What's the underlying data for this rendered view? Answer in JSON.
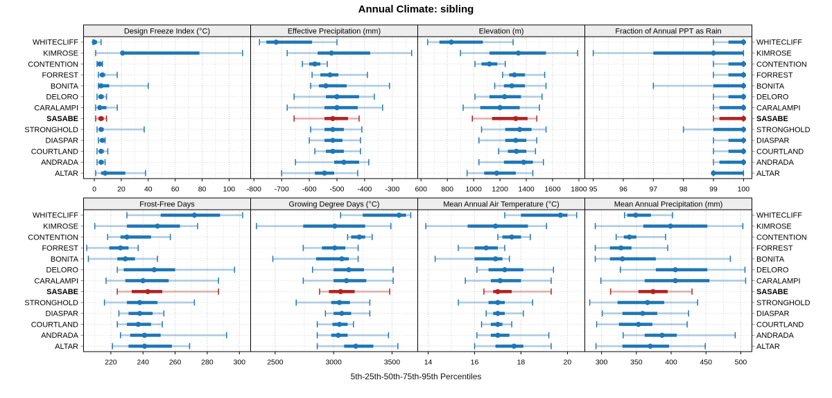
{
  "title": "Annual Climate: sibling",
  "caption": "5th-25th-50th-75th-95th Percentiles",
  "percentile_labels": [
    "5th",
    "25th",
    "50th",
    "75th",
    "95th"
  ],
  "stations": [
    "WHITECLIFF",
    "KIMROSE",
    "CONTENTION",
    "FORREST",
    "BONITA",
    "DELORO",
    "CARALAMPI",
    "SASABE",
    "STRONGHOLD",
    "DIASPAR",
    "COURTLAND",
    "ANDRADA",
    "ALTAR"
  ],
  "highlighted_station": "SASABE",
  "colors": {
    "series": "#1f77b4",
    "series_band": "rgba(31,119,180,0.33)",
    "highlight": "#b22222",
    "highlight_band": "rgba(178,34,34,0.33)",
    "strip_bg": "#ededed",
    "panel_border": "#000000",
    "grid_major": "#c4c4c4",
    "grid_minor": "#dcdcdc",
    "row_guide": "#d8d8d8",
    "text": "#000000"
  },
  "chart_data": {
    "type": "trellis-dotplot",
    "note": "Each row: [p5, p25, p50, p75, p95] per station, station order matches stations[]",
    "panels": [
      {
        "title": "Design Freeze Index (°C)",
        "grid_row": 0,
        "domain": [
          -8,
          116
        ],
        "ticks": [
          0,
          20,
          40,
          60,
          80,
          100
        ],
        "minor_step": 10,
        "series": [
          [
            -1,
            0,
            0,
            2,
            5
          ],
          [
            1,
            20,
            21,
            78,
            110
          ],
          [
            2,
            3,
            4,
            5,
            6
          ],
          [
            3,
            4,
            6,
            8,
            17
          ],
          [
            3,
            4,
            5,
            11,
            40
          ],
          [
            2,
            3,
            5,
            7,
            9
          ],
          [
            1,
            3,
            4,
            9,
            17
          ],
          [
            1,
            3,
            5,
            7,
            9
          ],
          [
            2,
            4,
            5,
            7,
            37
          ],
          [
            3,
            4,
            6,
            7,
            8
          ],
          [
            2,
            4,
            5,
            7,
            10
          ],
          [
            2,
            4,
            5,
            7,
            8
          ],
          [
            1,
            5,
            8,
            23,
            38
          ]
        ]
      },
      {
        "title": "Effective Precipitation (mm)",
        "grid_row": 0,
        "domain": [
          -812,
          -208
        ],
        "ticks": [
          -800,
          -700,
          -600,
          -500,
          -400,
          -300
        ],
        "minor_step": 50,
        "series": [
          [
            -780,
            -755,
            -720,
            -590,
            -500
          ],
          [
            -680,
            -570,
            -520,
            -380,
            -230
          ],
          [
            -625,
            -600,
            -580,
            -560,
            -535
          ],
          [
            -590,
            -560,
            -525,
            -495,
            -390
          ],
          [
            -595,
            -565,
            -540,
            -465,
            -310
          ],
          [
            -655,
            -540,
            -500,
            -420,
            -365
          ],
          [
            -680,
            -545,
            -500,
            -425,
            -335
          ],
          [
            -655,
            -545,
            -515,
            -460,
            -420
          ],
          [
            -595,
            -545,
            -515,
            -475,
            -410
          ],
          [
            -600,
            -545,
            -515,
            -480,
            -415
          ],
          [
            -580,
            -540,
            -515,
            -475,
            -415
          ],
          [
            -650,
            -510,
            -475,
            -420,
            -385
          ],
          [
            -700,
            -580,
            -545,
            -510,
            -425
          ]
        ]
      },
      {
        "title": "Elevation (m)",
        "grid_row": 0,
        "domain": [
          575,
          1845
        ],
        "ticks": [
          600,
          800,
          1000,
          1200,
          1400,
          1600,
          1800
        ],
        "minor_step": 100,
        "series": [
          [
            650,
            740,
            830,
            1070,
            1300
          ],
          [
            900,
            1120,
            1340,
            1550,
            1790
          ],
          [
            1010,
            1060,
            1120,
            1180,
            1240
          ],
          [
            1220,
            1270,
            1310,
            1390,
            1540
          ],
          [
            1160,
            1230,
            1290,
            1390,
            1550
          ],
          [
            1010,
            1120,
            1235,
            1360,
            1520
          ],
          [
            920,
            1050,
            1200,
            1350,
            1500
          ],
          [
            990,
            1140,
            1320,
            1410,
            1480
          ],
          [
            1060,
            1240,
            1350,
            1440,
            1550
          ],
          [
            1040,
            1240,
            1320,
            1400,
            1480
          ],
          [
            1190,
            1260,
            1325,
            1400,
            1470
          ],
          [
            1040,
            1230,
            1380,
            1450,
            1530
          ],
          [
            950,
            1080,
            1175,
            1320,
            1450
          ]
        ]
      },
      {
        "title": "Fraction of Annual PPT as Rain",
        "grid_row": 0,
        "domain": [
          94.72,
          100.28
        ],
        "ticks": [
          95,
          96,
          97,
          98,
          99,
          100
        ],
        "minor_step": 0.5,
        "series": [
          [
            99,
            99.5,
            100,
            100,
            100
          ],
          [
            95,
            97,
            99,
            100,
            100
          ],
          [
            99,
            99.5,
            100,
            100,
            100
          ],
          [
            99,
            99.5,
            100,
            100,
            100
          ],
          [
            97,
            99,
            100,
            100,
            100
          ],
          [
            99,
            99.5,
            100,
            100,
            100
          ],
          [
            99,
            99.2,
            100,
            100,
            100
          ],
          [
            99,
            99.2,
            100,
            100,
            100
          ],
          [
            98,
            99,
            100,
            100,
            100
          ],
          [
            99,
            99.5,
            100,
            100,
            100
          ],
          [
            99,
            99.5,
            100,
            100,
            100
          ],
          [
            99,
            99.2,
            100,
            100,
            100
          ],
          [
            99,
            99,
            99,
            100,
            100
          ]
        ]
      },
      {
        "title": "Frost-Free Days",
        "grid_row": 1,
        "domain": [
          203,
          307
        ],
        "ticks": [
          220,
          240,
          260,
          280,
          300
        ],
        "minor_step": 10,
        "series": [
          [
            230,
            251,
            272,
            288,
            302
          ],
          [
            210,
            230,
            249,
            263,
            274
          ],
          [
            218,
            226,
            230,
            245,
            257
          ],
          [
            205,
            219,
            226,
            231,
            237
          ],
          [
            206,
            224,
            229,
            235,
            249
          ],
          [
            224,
            228,
            247,
            260,
            297
          ],
          [
            217,
            229,
            240,
            256,
            287
          ],
          [
            224,
            233,
            243,
            252,
            287
          ],
          [
            216,
            230,
            238,
            249,
            272
          ],
          [
            225,
            231,
            238,
            246,
            253
          ],
          [
            224,
            230,
            237,
            245,
            252
          ],
          [
            226,
            232,
            241,
            251,
            292
          ],
          [
            221,
            231,
            241,
            258,
            269
          ]
        ]
      },
      {
        "title": "Growing Degree Days (°C)",
        "grid_row": 1,
        "domain": [
          2290,
          3720
        ],
        "ticks": [
          2500,
          3000,
          3500
        ],
        "minor_step": 250,
        "series": [
          [
            3060,
            3250,
            3560,
            3620,
            3660
          ],
          [
            2340,
            2740,
            3010,
            3270,
            3490
          ],
          [
            3120,
            3150,
            3220,
            3270,
            3330
          ],
          [
            2740,
            2900,
            3010,
            3100,
            3210
          ],
          [
            2480,
            2850,
            3070,
            3130,
            3210
          ],
          [
            2820,
            3000,
            3130,
            3260,
            3510
          ],
          [
            2740,
            3000,
            3110,
            3280,
            3510
          ],
          [
            2880,
            2960,
            3060,
            3180,
            3480
          ],
          [
            2680,
            2980,
            3050,
            3140,
            3310
          ],
          [
            2930,
            3000,
            3070,
            3150,
            3310
          ],
          [
            2860,
            2990,
            3050,
            3120,
            3170
          ],
          [
            2860,
            2980,
            3040,
            3120,
            3470
          ],
          [
            2860,
            3090,
            3190,
            3340,
            3550
          ]
        ]
      },
      {
        "title": "Mean Annual Air Temperature (°C)",
        "grid_row": 1,
        "domain": [
          13.55,
          20.75
        ],
        "ticks": [
          14,
          16,
          18,
          20
        ],
        "minor_step": 1,
        "series": [
          [
            17.3,
            18.0,
            19.7,
            20.0,
            20.4
          ],
          [
            13.9,
            15.7,
            16.9,
            18.3,
            19.1
          ],
          [
            17.0,
            17.2,
            17.6,
            18.0,
            18.4
          ],
          [
            15.3,
            16.0,
            16.5,
            17.0,
            17.3
          ],
          [
            14.3,
            16.0,
            16.9,
            17.2,
            17.5
          ],
          [
            16.1,
            16.6,
            17.3,
            18.1,
            19.4
          ],
          [
            15.6,
            16.7,
            17.1,
            18.0,
            19.3
          ],
          [
            16.4,
            16.8,
            17.0,
            17.6,
            19.3
          ],
          [
            15.3,
            16.6,
            17.0,
            17.3,
            18.5
          ],
          [
            16.5,
            16.8,
            17.0,
            17.3,
            18.1
          ],
          [
            16.3,
            16.7,
            17.0,
            17.2,
            17.6
          ],
          [
            16.1,
            16.7,
            17.0,
            17.5,
            19.2
          ],
          [
            16.0,
            16.9,
            17.7,
            18.1,
            19.3
          ]
        ]
      },
      {
        "title": "Mean Annual Precipitation (mm)",
        "grid_row": 1,
        "domain": [
          276,
          516
        ],
        "ticks": [
          300,
          350,
          400,
          450,
          500
        ],
        "minor_step": 25,
        "series": [
          [
            333,
            337,
            349,
            371,
            402
          ],
          [
            291,
            360,
            399,
            452,
            503
          ],
          [
            321,
            332,
            340,
            350,
            392
          ],
          [
            291,
            312,
            328,
            343,
            395
          ],
          [
            291,
            312,
            330,
            378,
            485
          ],
          [
            327,
            378,
            406,
            452,
            506
          ],
          [
            299,
            362,
            406,
            455,
            507
          ],
          [
            313,
            353,
            374,
            395,
            430
          ],
          [
            283,
            323,
            366,
            390,
            438
          ],
          [
            301,
            330,
            359,
            380,
            425
          ],
          [
            293,
            325,
            353,
            373,
            423
          ],
          [
            331,
            362,
            387,
            408,
            492
          ],
          [
            292,
            330,
            370,
            397,
            449
          ]
        ]
      }
    ]
  }
}
